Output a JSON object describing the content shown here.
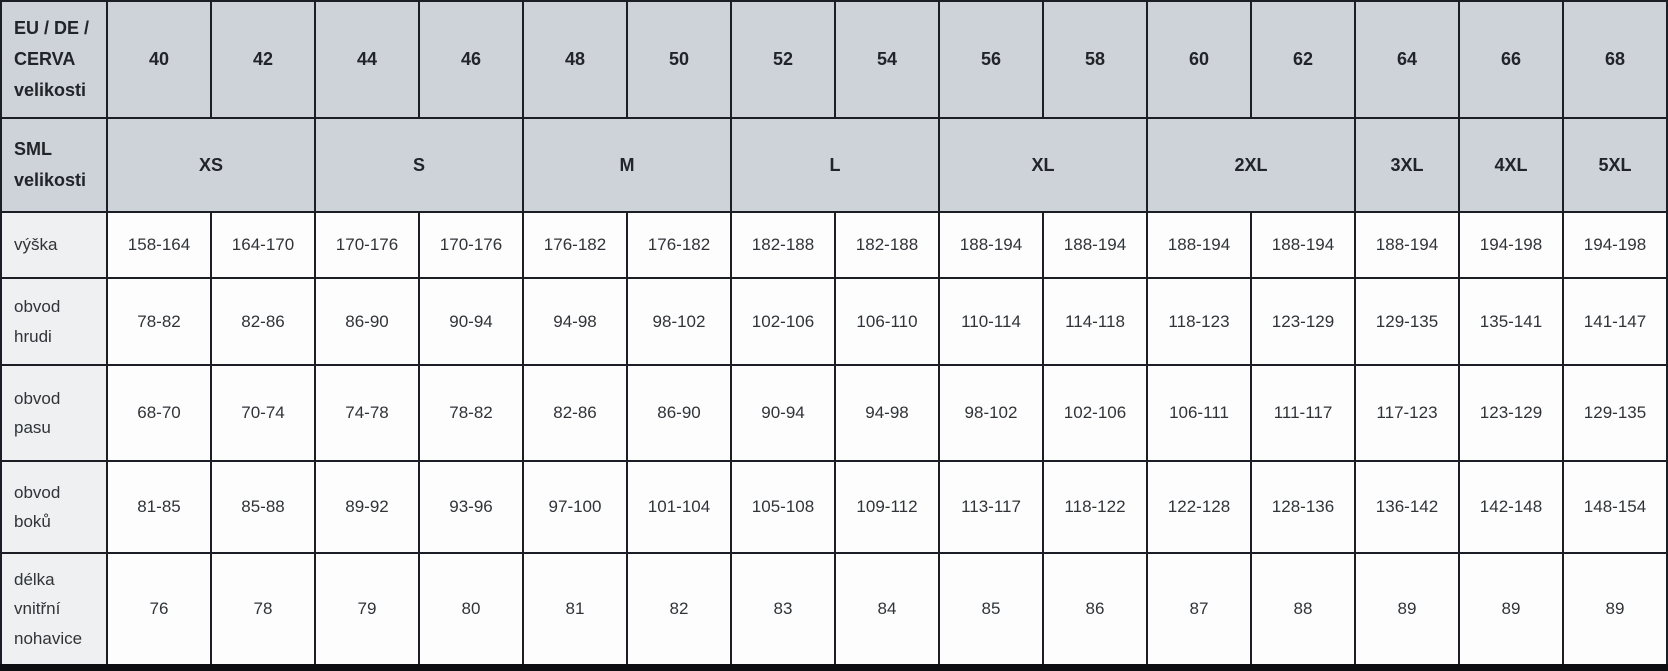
{
  "size_chart": {
    "eu_row_label": "EU / DE / CERVA velikosti",
    "eu_sizes": [
      "40",
      "42",
      "44",
      "46",
      "48",
      "50",
      "52",
      "54",
      "56",
      "58",
      "60",
      "62",
      "64",
      "66",
      "68"
    ],
    "sml_row_label": "SML velikosti",
    "sml_groups": [
      {
        "label": "XS",
        "colspan": 2
      },
      {
        "label": "S",
        "colspan": 2
      },
      {
        "label": "M",
        "colspan": 2
      },
      {
        "label": "L",
        "colspan": 2
      },
      {
        "label": "XL",
        "colspan": 2
      },
      {
        "label": "2XL",
        "colspan": 2
      },
      {
        "label": "3XL",
        "colspan": 1
      },
      {
        "label": "4XL",
        "colspan": 1
      },
      {
        "label": "5XL",
        "colspan": 1
      }
    ],
    "measurement_rows": [
      {
        "key": "vyska",
        "label": "výška",
        "values": [
          "158-164",
          "164-170",
          "170-176",
          "170-176",
          "176-182",
          "176-182",
          "182-188",
          "182-188",
          "188-194",
          "188-194",
          "188-194",
          "188-194",
          "188-194",
          "194-198",
          "194-198"
        ]
      },
      {
        "key": "obvod-hrudi",
        "label": "obvod hrudi",
        "values": [
          "78-82",
          "82-86",
          "86-90",
          "90-94",
          "94-98",
          "98-102",
          "102-106",
          "106-110",
          "110-114",
          "114-118",
          "118-123",
          "123-129",
          "129-135",
          "135-141",
          "141-147"
        ]
      },
      {
        "key": "obvod-pasu",
        "label": "obvod pasu",
        "values": [
          "68-70",
          "70-74",
          "74-78",
          "78-82",
          "82-86",
          "86-90",
          "90-94",
          "94-98",
          "98-102",
          "102-106",
          "106-111",
          "111-117",
          "117-123",
          "123-129",
          "129-135"
        ]
      },
      {
        "key": "obvod-boku",
        "label": "obvod boků",
        "values": [
          "81-85",
          "85-88",
          "89-92",
          "93-96",
          "97-100",
          "101-104",
          "105-108",
          "109-112",
          "113-117",
          "118-122",
          "122-128",
          "128-136",
          "136-142",
          "142-148",
          "148-154"
        ]
      },
      {
        "key": "delka-vnitrni-nohavice",
        "label": "délka vnitřní nohavice",
        "values": [
          "76",
          "78",
          "79",
          "80",
          "81",
          "82",
          "83",
          "84",
          "85",
          "86",
          "87",
          "88",
          "89",
          "89",
          "89"
        ]
      }
    ]
  },
  "colors": {
    "header_bg": "#ced3da",
    "label_bg": "#eef0f2",
    "cell_bg": "#fdfdfd",
    "border": "#1b1e24",
    "text": "#303438"
  },
  "chart_data": {
    "type": "table",
    "title": "Size chart (CERVA velikosti)",
    "columns": [
      "EU / DE / CERVA velikosti",
      "40",
      "42",
      "44",
      "46",
      "48",
      "50",
      "52",
      "54",
      "56",
      "58",
      "60",
      "62",
      "64",
      "66",
      "68"
    ],
    "rows": [
      [
        "SML velikosti",
        "XS",
        "XS",
        "S",
        "S",
        "M",
        "M",
        "L",
        "L",
        "XL",
        "XL",
        "2XL",
        "2XL",
        "3XL",
        "4XL",
        "5XL"
      ],
      [
        "výška",
        "158-164",
        "164-170",
        "170-176",
        "170-176",
        "176-182",
        "176-182",
        "182-188",
        "182-188",
        "188-194",
        "188-194",
        "188-194",
        "188-194",
        "188-194",
        "194-198",
        "194-198"
      ],
      [
        "obvod hrudi",
        "78-82",
        "82-86",
        "86-90",
        "90-94",
        "94-98",
        "98-102",
        "102-106",
        "106-110",
        "110-114",
        "114-118",
        "118-123",
        "123-129",
        "129-135",
        "135-141",
        "141-147"
      ],
      [
        "obvod pasu",
        "68-70",
        "70-74",
        "74-78",
        "78-82",
        "82-86",
        "86-90",
        "90-94",
        "94-98",
        "98-102",
        "102-106",
        "106-111",
        "111-117",
        "117-123",
        "123-129",
        "129-135"
      ],
      [
        "obvod boků",
        "81-85",
        "85-88",
        "89-92",
        "93-96",
        "97-100",
        "101-104",
        "105-108",
        "109-112",
        "113-117",
        "118-122",
        "122-128",
        "128-136",
        "136-142",
        "142-148",
        "148-154"
      ],
      [
        "délka vnitřní nohavice",
        "76",
        "78",
        "79",
        "80",
        "81",
        "82",
        "83",
        "84",
        "85",
        "86",
        "87",
        "88",
        "89",
        "89",
        "89"
      ]
    ]
  }
}
